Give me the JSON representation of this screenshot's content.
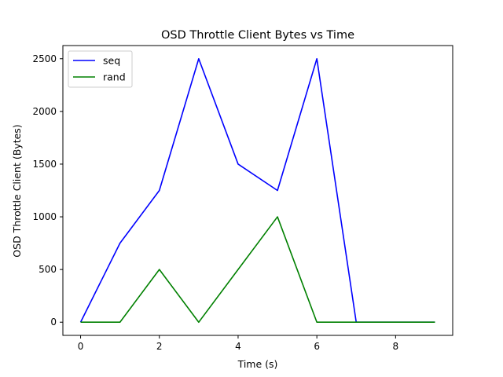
{
  "chart_data": {
    "type": "line",
    "title": "OSD Throttle Client Bytes vs Time",
    "xlabel": "Time (s)",
    "ylabel": "OSD Throttle Client (Bytes)",
    "xlim": [
      -0.45,
      9.45
    ],
    "ylim": [
      -125,
      2625
    ],
    "xticks": [
      0,
      2,
      4,
      6,
      8
    ],
    "yticks": [
      0,
      500,
      1000,
      1500,
      2000,
      2500
    ],
    "grid": false,
    "legend_position": "top-left",
    "x": [
      0,
      1,
      2,
      3,
      4,
      5,
      6,
      7,
      8,
      9
    ],
    "series": [
      {
        "name": "seq",
        "color": "#0000ff",
        "values": [
          0,
          750,
          1250,
          2500,
          1500,
          1250,
          2500,
          0,
          0,
          0
        ]
      },
      {
        "name": "rand",
        "color": "#008000",
        "values": [
          0,
          0,
          500,
          0,
          500,
          1000,
          0,
          0,
          0,
          0
        ]
      }
    ]
  }
}
